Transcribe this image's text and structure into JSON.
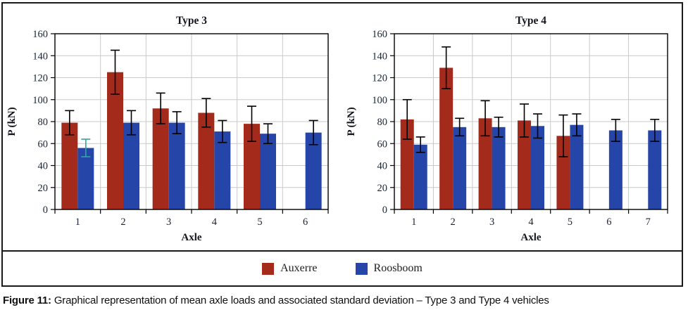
{
  "figure": {
    "caption_label": "Figure 11:",
    "caption_text": "Graphical representation of mean axle loads and associated standard deviation – Type 3 and Type 4 vehicles"
  },
  "legend": {
    "items": [
      {
        "label": "Auxerre",
        "color": "#A42A1C"
      },
      {
        "label": "Roosboom",
        "color": "#2546A8"
      }
    ]
  },
  "colors": {
    "auxerre_red": "#A42A1C",
    "roosboom_blue": "#2546A8",
    "teal_error_bar": "#2FA79D",
    "gridline": "#C9C9C9",
    "frame": "#000000",
    "tick_label": "#1B2433",
    "panel_border": "#1a1a1a"
  },
  "chart_data": [
    {
      "type": "bar",
      "title": "Type 3",
      "xlabel": "Axle",
      "ylabel": "P (kN)",
      "ylim": [
        0,
        160
      ],
      "ytick_step": 20,
      "grid": true,
      "legend_position": "bottom-shared",
      "categories": [
        "1",
        "2",
        "3",
        "4",
        "5",
        "6"
      ],
      "series": [
        {
          "name": "Auxerre",
          "color": "#A42A1C",
          "values": [
            79,
            125,
            92,
            88,
            78,
            null
          ],
          "errors": [
            11,
            20,
            14,
            13,
            16,
            null
          ]
        },
        {
          "name": "Roosboom",
          "color": "#2546A8",
          "values": [
            56,
            79,
            79,
            71,
            69,
            70
          ],
          "errors": [
            8,
            11,
            10,
            10,
            9,
            11
          ],
          "error_colors": [
            "#2FA79D",
            null,
            null,
            null,
            null,
            null
          ]
        }
      ]
    },
    {
      "type": "bar",
      "title": "Type 4",
      "xlabel": "Axle",
      "ylabel": "P (kN)",
      "ylim": [
        0,
        160
      ],
      "ytick_step": 20,
      "grid": true,
      "legend_position": "bottom-shared",
      "categories": [
        "1",
        "2",
        "3",
        "4",
        "5",
        "6",
        "7"
      ],
      "series": [
        {
          "name": "Auxerre",
          "color": "#A42A1C",
          "values": [
            82,
            129,
            83,
            81,
            67,
            null,
            null
          ],
          "errors": [
            18,
            19,
            16,
            15,
            19,
            null,
            null
          ]
        },
        {
          "name": "Roosboom",
          "color": "#2546A8",
          "values": [
            59,
            75,
            75,
            76,
            77,
            72,
            72
          ],
          "errors": [
            7,
            8,
            9,
            11,
            10,
            10,
            10
          ]
        }
      ]
    }
  ]
}
